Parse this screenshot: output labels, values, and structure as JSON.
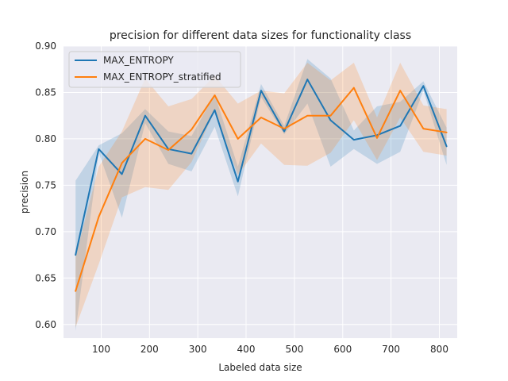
{
  "chart_data": {
    "type": "line",
    "title": "precision for different data sizes for functionality class",
    "xlabel": "Labeled data size",
    "ylabel": "precision",
    "xlim": [
      22,
      837
    ],
    "ylim": [
      0.5853,
      0.9
    ],
    "xticks": [
      100,
      200,
      300,
      400,
      500,
      600,
      700,
      800
    ],
    "xtick_labels": [
      "100",
      "200",
      "300",
      "400",
      "500",
      "600",
      "700",
      "800"
    ],
    "yticks": [
      0.6,
      0.65,
      0.7,
      0.75,
      0.8,
      0.85,
      0.9
    ],
    "ytick_labels": [
      "0.60",
      "0.65",
      "0.70",
      "0.75",
      "0.80",
      "0.85",
      "0.90"
    ],
    "grid": true,
    "legend_position": "upper-left",
    "x": [
      47,
      95,
      143,
      191,
      239,
      287,
      335,
      383,
      431,
      479,
      527,
      575,
      623,
      671,
      719,
      767,
      815
    ],
    "series": [
      {
        "name": "MAX_ENTROPY",
        "color": "#1f77b4",
        "values": [
          0.675,
          0.789,
          0.762,
          0.825,
          0.789,
          0.784,
          0.831,
          0.754,
          0.852,
          0.808,
          0.864,
          0.82,
          0.799,
          0.804,
          0.814,
          0.857,
          0.792
        ],
        "lower": [
          0.593,
          0.785,
          0.715,
          0.817,
          0.773,
          0.765,
          0.813,
          0.738,
          0.845,
          0.805,
          0.838,
          0.77,
          0.789,
          0.773,
          0.786,
          0.852,
          0.772
        ],
        "upper": [
          0.755,
          0.793,
          0.806,
          0.832,
          0.808,
          0.803,
          0.848,
          0.77,
          0.859,
          0.814,
          0.886,
          0.865,
          0.809,
          0.835,
          0.84,
          0.862,
          0.812
        ]
      },
      {
        "name": "MAX_ENTROPY_stratified",
        "color": "#ff7f0e",
        "values": [
          0.636,
          0.716,
          0.774,
          0.8,
          0.788,
          0.81,
          0.847,
          0.8,
          0.823,
          0.811,
          0.825,
          0.825,
          0.855,
          0.801,
          0.852,
          0.811,
          0.807
        ],
        "lower": [
          0.597,
          0.665,
          0.737,
          0.748,
          0.745,
          0.775,
          0.83,
          0.761,
          0.795,
          0.772,
          0.771,
          0.785,
          0.82,
          0.777,
          0.823,
          0.786,
          0.782
        ],
        "upper": [
          0.673,
          0.77,
          0.808,
          0.865,
          0.835,
          0.843,
          0.868,
          0.838,
          0.852,
          0.849,
          0.882,
          0.863,
          0.882,
          0.823,
          0.882,
          0.836,
          0.832
        ]
      }
    ]
  }
}
